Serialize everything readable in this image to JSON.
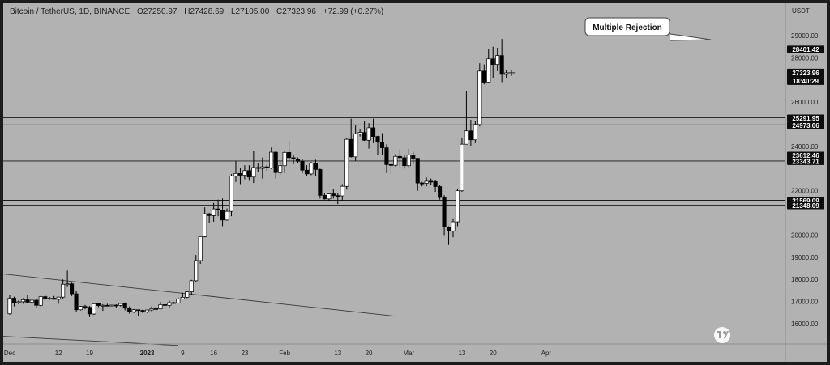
{
  "header": {
    "symbol": "Bitcoin / TetherUS, 1D, BINANCE",
    "open": "O27250.97",
    "high": "H27428.69",
    "low": "L27105.00",
    "close": "C27323.96",
    "change": "+72.99 (+0.27%)"
  },
  "colors": {
    "background": "#b2b2b2",
    "up_candle": "#ffffff",
    "down_candle": "#000000",
    "label_bg": "#0d0d0d",
    "label_text": "#ffffff"
  },
  "annotation": {
    "text": "Multiple Rejection"
  },
  "watermark_icon": "tradingview-logo-icon",
  "chart_data": {
    "type": "candlestick",
    "y_unit": "USDT",
    "ylim": [
      15000,
      29600
    ],
    "y_ticks": [
      "29000.00",
      "28000.00",
      "26000.00",
      "24000.00",
      "22000.00",
      "20000.00",
      "19000.00",
      "18000.00",
      "17000.00",
      "16000.00"
    ],
    "x_ticks": [
      "Dec",
      "12",
      "19",
      "2023",
      "9",
      "16",
      "23",
      "Feb",
      "13",
      "20",
      "Mar",
      "13",
      "20",
      "Apr"
    ],
    "levels": [
      {
        "label": "28401.42",
        "value": 28401.42
      },
      {
        "label": "25291.95",
        "value": 25291.95
      },
      {
        "label": "24973.06",
        "value": 24973.06
      },
      {
        "label": "23612.46",
        "value": 23612.46
      },
      {
        "label": "23343.71",
        "value": 23343.71
      },
      {
        "label": "21569.09",
        "value": 21569.09
      },
      {
        "label": "21348.09",
        "value": 21348.09
      }
    ],
    "price_label": {
      "price": "27323.96",
      "time": "18:40:29",
      "value": 27323.96
    },
    "trendlines": [
      {
        "from": {
          "date": "2022-11-26",
          "price": 18320
        },
        "to": {
          "date": "2023-02-26",
          "price": 16340
        }
      },
      {
        "from": {
          "date": "2022-11-25",
          "price": 15480
        },
        "to": {
          "date": "2023-01-08",
          "price": 15020
        }
      }
    ],
    "candles": [
      {
        "date": "2022-12-01",
        "o": 16450,
        "h": 17300,
        "l": 16400,
        "c": 17150
      },
      {
        "date": "2022-12-02",
        "o": 17150,
        "h": 17220,
        "l": 16780,
        "c": 16950
      },
      {
        "date": "2022-12-03",
        "o": 16950,
        "h": 17050,
        "l": 16880,
        "c": 16990
      },
      {
        "date": "2022-12-04",
        "o": 16990,
        "h": 17150,
        "l": 16900,
        "c": 17080
      },
      {
        "date": "2022-12-05",
        "o": 17080,
        "h": 17300,
        "l": 16950,
        "c": 16970
      },
      {
        "date": "2022-12-06",
        "o": 16970,
        "h": 17100,
        "l": 16900,
        "c": 17060
      },
      {
        "date": "2022-12-07",
        "o": 17060,
        "h": 17140,
        "l": 16700,
        "c": 16830
      },
      {
        "date": "2022-12-08",
        "o": 16830,
        "h": 17250,
        "l": 16760,
        "c": 17220
      },
      {
        "date": "2022-12-09",
        "o": 17220,
        "h": 17280,
        "l": 17080,
        "c": 17130
      },
      {
        "date": "2022-12-10",
        "o": 17130,
        "h": 17200,
        "l": 17080,
        "c": 17150
      },
      {
        "date": "2022-12-11",
        "o": 17150,
        "h": 17250,
        "l": 17090,
        "c": 17100
      },
      {
        "date": "2022-12-12",
        "o": 17100,
        "h": 17220,
        "l": 16900,
        "c": 17200
      },
      {
        "date": "2022-12-13",
        "o": 17200,
        "h": 18000,
        "l": 17100,
        "c": 17780
      },
      {
        "date": "2022-12-14",
        "o": 17780,
        "h": 18400,
        "l": 17650,
        "c": 17800
      },
      {
        "date": "2022-12-15",
        "o": 17800,
        "h": 17850,
        "l": 17250,
        "c": 17350
      },
      {
        "date": "2022-12-16",
        "o": 17350,
        "h": 17500,
        "l": 16550,
        "c": 16630
      },
      {
        "date": "2022-12-17",
        "o": 16630,
        "h": 16800,
        "l": 16600,
        "c": 16780
      },
      {
        "date": "2022-12-18",
        "o": 16780,
        "h": 16850,
        "l": 16650,
        "c": 16740
      },
      {
        "date": "2022-12-19",
        "o": 16740,
        "h": 16800,
        "l": 16300,
        "c": 16440
      },
      {
        "date": "2022-12-20",
        "o": 16440,
        "h": 16950,
        "l": 16400,
        "c": 16900
      },
      {
        "date": "2022-12-21",
        "o": 16900,
        "h": 16920,
        "l": 16750,
        "c": 16820
      },
      {
        "date": "2022-12-22",
        "o": 16820,
        "h": 16880,
        "l": 16580,
        "c": 16830
      },
      {
        "date": "2022-12-23",
        "o": 16830,
        "h": 16900,
        "l": 16780,
        "c": 16800
      },
      {
        "date": "2022-12-24",
        "o": 16800,
        "h": 16860,
        "l": 16780,
        "c": 16840
      },
      {
        "date": "2022-12-25",
        "o": 16840,
        "h": 16870,
        "l": 16730,
        "c": 16830
      },
      {
        "date": "2022-12-26",
        "o": 16830,
        "h": 16950,
        "l": 16780,
        "c": 16910
      },
      {
        "date": "2022-12-27",
        "o": 16910,
        "h": 16960,
        "l": 16600,
        "c": 16700
      },
      {
        "date": "2022-12-28",
        "o": 16700,
        "h": 16780,
        "l": 16450,
        "c": 16540
      },
      {
        "date": "2022-12-29",
        "o": 16540,
        "h": 16660,
        "l": 16480,
        "c": 16630
      },
      {
        "date": "2022-12-30",
        "o": 16630,
        "h": 16640,
        "l": 16350,
        "c": 16600
      },
      {
        "date": "2022-12-31",
        "o": 16600,
        "h": 16640,
        "l": 16470,
        "c": 16540
      },
      {
        "date": "2023-01-01",
        "o": 16540,
        "h": 16630,
        "l": 16490,
        "c": 16620
      },
      {
        "date": "2023-01-02",
        "o": 16620,
        "h": 16780,
        "l": 16560,
        "c": 16680
      },
      {
        "date": "2023-01-03",
        "o": 16680,
        "h": 16770,
        "l": 16600,
        "c": 16670
      },
      {
        "date": "2023-01-04",
        "o": 16670,
        "h": 16980,
        "l": 16650,
        "c": 16860
      },
      {
        "date": "2023-01-05",
        "o": 16860,
        "h": 16880,
        "l": 16750,
        "c": 16830
      },
      {
        "date": "2023-01-06",
        "o": 16830,
        "h": 17040,
        "l": 16700,
        "c": 16950
      },
      {
        "date": "2023-01-07",
        "o": 16950,
        "h": 16980,
        "l": 16900,
        "c": 16940
      },
      {
        "date": "2023-01-08",
        "o": 16940,
        "h": 17180,
        "l": 16920,
        "c": 17120
      },
      {
        "date": "2023-01-09",
        "o": 17120,
        "h": 17400,
        "l": 17100,
        "c": 17190
      },
      {
        "date": "2023-01-10",
        "o": 17190,
        "h": 17480,
        "l": 17150,
        "c": 17440
      },
      {
        "date": "2023-01-11",
        "o": 17440,
        "h": 17980,
        "l": 17300,
        "c": 17940
      },
      {
        "date": "2023-01-12",
        "o": 17940,
        "h": 19100,
        "l": 17900,
        "c": 18850
      },
      {
        "date": "2023-01-13",
        "o": 18850,
        "h": 19950,
        "l": 18700,
        "c": 19930
      },
      {
        "date": "2023-01-14",
        "o": 19930,
        "h": 21250,
        "l": 19900,
        "c": 20960
      },
      {
        "date": "2023-01-15",
        "o": 20960,
        "h": 21000,
        "l": 20550,
        "c": 20880
      },
      {
        "date": "2023-01-16",
        "o": 20880,
        "h": 21450,
        "l": 20600,
        "c": 21180
      },
      {
        "date": "2023-01-17",
        "o": 21180,
        "h": 21600,
        "l": 20850,
        "c": 21130
      },
      {
        "date": "2023-01-18",
        "o": 21130,
        "h": 21650,
        "l": 20400,
        "c": 20680
      },
      {
        "date": "2023-01-19",
        "o": 20680,
        "h": 21200,
        "l": 20650,
        "c": 21070
      },
      {
        "date": "2023-01-20",
        "o": 21070,
        "h": 22750,
        "l": 20850,
        "c": 22670
      },
      {
        "date": "2023-01-21",
        "o": 22670,
        "h": 23350,
        "l": 22400,
        "c": 22780
      },
      {
        "date": "2023-01-22",
        "o": 22780,
        "h": 23050,
        "l": 22300,
        "c": 22700
      },
      {
        "date": "2023-01-23",
        "o": 22700,
        "h": 23150,
        "l": 22520,
        "c": 22910
      },
      {
        "date": "2023-01-24",
        "o": 22910,
        "h": 23150,
        "l": 22450,
        "c": 22620
      },
      {
        "date": "2023-01-25",
        "o": 22620,
        "h": 23800,
        "l": 22350,
        "c": 23050
      },
      {
        "date": "2023-01-26",
        "o": 23050,
        "h": 23250,
        "l": 22850,
        "c": 23010
      },
      {
        "date": "2023-01-27",
        "o": 23010,
        "h": 23500,
        "l": 22550,
        "c": 23080
      },
      {
        "date": "2023-01-28",
        "o": 23080,
        "h": 23160,
        "l": 22900,
        "c": 23030
      },
      {
        "date": "2023-01-29",
        "o": 23030,
        "h": 23950,
        "l": 22980,
        "c": 23740
      },
      {
        "date": "2023-01-30",
        "o": 23740,
        "h": 23800,
        "l": 22550,
        "c": 22820
      },
      {
        "date": "2023-01-31",
        "o": 22820,
        "h": 23300,
        "l": 22720,
        "c": 23130
      },
      {
        "date": "2023-02-01",
        "o": 23130,
        "h": 23800,
        "l": 22800,
        "c": 23730
      },
      {
        "date": "2023-02-02",
        "o": 23730,
        "h": 24250,
        "l": 23350,
        "c": 23490
      },
      {
        "date": "2023-02-03",
        "o": 23490,
        "h": 23600,
        "l": 23200,
        "c": 23430
      },
      {
        "date": "2023-02-04",
        "o": 23430,
        "h": 23500,
        "l": 23250,
        "c": 23330
      },
      {
        "date": "2023-02-05",
        "o": 23330,
        "h": 23450,
        "l": 22800,
        "c": 22930
      },
      {
        "date": "2023-02-06",
        "o": 22930,
        "h": 23150,
        "l": 22650,
        "c": 22760
      },
      {
        "date": "2023-02-07",
        "o": 22760,
        "h": 23300,
        "l": 22700,
        "c": 23240
      },
      {
        "date": "2023-02-08",
        "o": 23240,
        "h": 23400,
        "l": 22650,
        "c": 22960
      },
      {
        "date": "2023-02-09",
        "o": 22960,
        "h": 23000,
        "l": 21650,
        "c": 21790
      },
      {
        "date": "2023-02-10",
        "o": 21790,
        "h": 21900,
        "l": 21600,
        "c": 21630
      },
      {
        "date": "2023-02-11",
        "o": 21630,
        "h": 21900,
        "l": 21550,
        "c": 21860
      },
      {
        "date": "2023-02-12",
        "o": 21860,
        "h": 22100,
        "l": 21650,
        "c": 21780
      },
      {
        "date": "2023-02-13",
        "o": 21780,
        "h": 21900,
        "l": 21400,
        "c": 21770
      },
      {
        "date": "2023-02-14",
        "o": 21770,
        "h": 22300,
        "l": 21550,
        "c": 22200
      },
      {
        "date": "2023-02-15",
        "o": 22200,
        "h": 24400,
        "l": 22050,
        "c": 24320
      },
      {
        "date": "2023-02-16",
        "o": 24320,
        "h": 25250,
        "l": 23500,
        "c": 23530
      },
      {
        "date": "2023-02-17",
        "o": 23530,
        "h": 24950,
        "l": 23350,
        "c": 24570
      },
      {
        "date": "2023-02-18",
        "o": 24570,
        "h": 24800,
        "l": 24450,
        "c": 24630
      },
      {
        "date": "2023-02-19",
        "o": 24630,
        "h": 25150,
        "l": 24250,
        "c": 24280
      },
      {
        "date": "2023-02-20",
        "o": 24280,
        "h": 25050,
        "l": 23900,
        "c": 24840
      },
      {
        "date": "2023-02-21",
        "o": 24840,
        "h": 25250,
        "l": 24150,
        "c": 24450
      },
      {
        "date": "2023-02-22",
        "o": 24450,
        "h": 24480,
        "l": 23600,
        "c": 24190
      },
      {
        "date": "2023-02-23",
        "o": 24190,
        "h": 24600,
        "l": 23600,
        "c": 23940
      },
      {
        "date": "2023-02-24",
        "o": 23940,
        "h": 24100,
        "l": 22800,
        "c": 23180
      },
      {
        "date": "2023-02-25",
        "o": 23180,
        "h": 23220,
        "l": 22750,
        "c": 23150
      },
      {
        "date": "2023-02-26",
        "o": 23150,
        "h": 23650,
        "l": 23100,
        "c": 23550
      },
      {
        "date": "2023-02-27",
        "o": 23550,
        "h": 23880,
        "l": 23100,
        "c": 23490
      },
      {
        "date": "2023-02-28",
        "o": 23490,
        "h": 23600,
        "l": 23000,
        "c": 23130
      },
      {
        "date": "2023-03-01",
        "o": 23130,
        "h": 23900,
        "l": 23050,
        "c": 23620
      },
      {
        "date": "2023-03-02",
        "o": 23620,
        "h": 23750,
        "l": 23200,
        "c": 23460
      },
      {
        "date": "2023-03-03",
        "o": 23460,
        "h": 23480,
        "l": 22000,
        "c": 22350
      },
      {
        "date": "2023-03-04",
        "o": 22350,
        "h": 22400,
        "l": 22200,
        "c": 22340
      },
      {
        "date": "2023-03-05",
        "o": 22340,
        "h": 22600,
        "l": 22200,
        "c": 22430
      },
      {
        "date": "2023-03-06",
        "o": 22430,
        "h": 22550,
        "l": 22250,
        "c": 22410
      },
      {
        "date": "2023-03-07",
        "o": 22410,
        "h": 22500,
        "l": 21950,
        "c": 22190
      },
      {
        "date": "2023-03-08",
        "o": 22190,
        "h": 22250,
        "l": 21600,
        "c": 21700
      },
      {
        "date": "2023-03-09",
        "o": 21700,
        "h": 21800,
        "l": 20000,
        "c": 20360
      },
      {
        "date": "2023-03-10",
        "o": 20360,
        "h": 20400,
        "l": 19550,
        "c": 20190
      },
      {
        "date": "2023-03-11",
        "o": 20190,
        "h": 20750,
        "l": 19900,
        "c": 20600
      },
      {
        "date": "2023-03-12",
        "o": 20600,
        "h": 22100,
        "l": 20400,
        "c": 22000
      },
      {
        "date": "2023-03-13",
        "o": 22000,
        "h": 24400,
        "l": 21950,
        "c": 24100
      },
      {
        "date": "2023-03-14",
        "o": 24100,
        "h": 26500,
        "l": 24100,
        "c": 24700
      },
      {
        "date": "2023-03-15",
        "o": 24700,
        "h": 25200,
        "l": 24000,
        "c": 24300
      },
      {
        "date": "2023-03-16",
        "o": 24300,
        "h": 25150,
        "l": 24150,
        "c": 24990
      },
      {
        "date": "2023-03-17",
        "o": 24990,
        "h": 27750,
        "l": 24900,
        "c": 27400
      },
      {
        "date": "2023-03-18",
        "o": 27400,
        "h": 27700,
        "l": 26800,
        "c": 26900
      },
      {
        "date": "2023-03-19",
        "o": 26900,
        "h": 28400,
        "l": 26850,
        "c": 27950
      },
      {
        "date": "2023-03-20",
        "o": 27950,
        "h": 28500,
        "l": 27100,
        "c": 27700
      },
      {
        "date": "2023-03-21",
        "o": 27700,
        "h": 28450,
        "l": 27400,
        "c": 28100
      },
      {
        "date": "2023-03-22",
        "o": 28100,
        "h": 28850,
        "l": 26900,
        "c": 27250
      },
      {
        "date": "2023-03-23",
        "o": 27250,
        "h": 27430,
        "l": 27100,
        "c": 27320
      }
    ]
  }
}
